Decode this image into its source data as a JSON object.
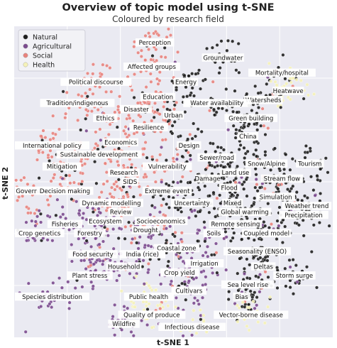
{
  "chart_data": {
    "type": "scatter",
    "title": "Overview of topic model using t-SNE",
    "subtitle": "Coloured by research field",
    "xlabel": "t-SNE 1",
    "ylabel": "t-SNE 2",
    "xlim": [
      0,
      100
    ],
    "ylim": [
      0,
      100
    ],
    "grid": true,
    "legend_position": "top-left",
    "series": [
      {
        "name": "Natural",
        "color": "#1e1e1e"
      },
      {
        "name": "Agricultural",
        "color": "#7b4a8e"
      },
      {
        "name": "Social",
        "color": "#e8837d"
      },
      {
        "name": "Health",
        "color": "#f5f2b8"
      }
    ],
    "annotations": [
      {
        "text": "Perception",
        "x": 44,
        "y": 96
      },
      {
        "text": "Groundwater",
        "x": 66,
        "y": 91
      },
      {
        "text": "Affected groups",
        "x": 43,
        "y": 88
      },
      {
        "text": "Mortality/hospital",
        "x": 85,
        "y": 86
      },
      {
        "text": "Political discourse",
        "x": 25,
        "y": 83
      },
      {
        "text": "Energy",
        "x": 54,
        "y": 83
      },
      {
        "text": "Heatwave",
        "x": 87,
        "y": 80
      },
      {
        "text": "Watersheds",
        "x": 79,
        "y": 77
      },
      {
        "text": "Education",
        "x": 45,
        "y": 78
      },
      {
        "text": "Water availability",
        "x": 64,
        "y": 76
      },
      {
        "text": "Tradition/indigenous",
        "x": 19,
        "y": 76
      },
      {
        "text": "Disaster",
        "x": 38,
        "y": 74
      },
      {
        "text": "Urban",
        "x": 50,
        "y": 72
      },
      {
        "text": "Ethics",
        "x": 28,
        "y": 71
      },
      {
        "text": "Green building",
        "x": 75,
        "y": 71
      },
      {
        "text": "Resilience",
        "x": 42,
        "y": 68
      },
      {
        "text": "China",
        "x": 74,
        "y": 65
      },
      {
        "text": "Economics",
        "x": 33,
        "y": 63
      },
      {
        "text": "International policy",
        "x": 9,
        "y": 62
      },
      {
        "text": "Design",
        "x": 55,
        "y": 62
      },
      {
        "text": "Sustainable development",
        "x": 26,
        "y": 59
      },
      {
        "text": "Sewer/road",
        "x": 64,
        "y": 58
      },
      {
        "text": "Snow/Alpine",
        "x": 80,
        "y": 56
      },
      {
        "text": "Tourism",
        "x": 94,
        "y": 56
      },
      {
        "text": "Mitigation",
        "x": 14,
        "y": 55
      },
      {
        "text": "Vulnerability",
        "x": 48,
        "y": 55
      },
      {
        "text": "Research",
        "x": 34,
        "y": 53
      },
      {
        "text": "Land use",
        "x": 70,
        "y": 53
      },
      {
        "text": "Damage",
        "x": 61,
        "y": 51
      },
      {
        "text": "Stream flow",
        "x": 85,
        "y": 51
      },
      {
        "text": "SIDS",
        "x": 36,
        "y": 50
      },
      {
        "text": "Flood",
        "x": 68,
        "y": 48
      },
      {
        "text": "Governance",
        "x": 3,
        "y": 47
      },
      {
        "text": "Decision making",
        "x": 15,
        "y": 47
      },
      {
        "text": "Extreme event",
        "x": 48,
        "y": 47
      },
      {
        "text": "Simulation",
        "x": 83,
        "y": 45
      },
      {
        "text": "Dynamic modelling",
        "x": 30,
        "y": 43
      },
      {
        "text": "Uncertainty",
        "x": 56,
        "y": 43
      },
      {
        "text": "Mixed",
        "x": 69,
        "y": 43
      },
      {
        "text": "Weather trend",
        "x": 93,
        "y": 42
      },
      {
        "text": "Review",
        "x": 33,
        "y": 40
      },
      {
        "text": "Global warming",
        "x": 73,
        "y": 40
      },
      {
        "text": "Precipitation",
        "x": 92,
        "y": 39
      },
      {
        "text": "Socioeconomics",
        "x": 46,
        "y": 37
      },
      {
        "text": "Ecosystem",
        "x": 28,
        "y": 37
      },
      {
        "text": "Drought",
        "x": 41,
        "y": 34
      },
      {
        "text": "Remote sensing",
        "x": 70,
        "y": 36
      },
      {
        "text": "Fisheries",
        "x": 15,
        "y": 36
      },
      {
        "text": "Coupled model",
        "x": 80,
        "y": 33
      },
      {
        "text": "Crop genetics",
        "x": 5,
        "y": 33
      },
      {
        "text": "Forestry",
        "x": 23,
        "y": 33
      },
      {
        "text": "Soils",
        "x": 63,
        "y": 33
      },
      {
        "text": "Coastal zone",
        "x": 51,
        "y": 28
      },
      {
        "text": "Seasonality (ENSO)",
        "x": 77,
        "y": 27
      },
      {
        "text": "Food security",
        "x": 24,
        "y": 26
      },
      {
        "text": "India (rice)",
        "x": 40,
        "y": 26
      },
      {
        "text": "Irrigation",
        "x": 60,
        "y": 23
      },
      {
        "text": "Household",
        "x": 34,
        "y": 22
      },
      {
        "text": "Deltas",
        "x": 79,
        "y": 22
      },
      {
        "text": "Crop yield",
        "x": 52,
        "y": 20
      },
      {
        "text": "Plant stress",
        "x": 23,
        "y": 19
      },
      {
        "text": "Storm surge",
        "x": 89,
        "y": 19
      },
      {
        "text": "Sea level rise",
        "x": 74,
        "y": 16
      },
      {
        "text": "Cultivars",
        "x": 55,
        "y": 14
      },
      {
        "text": "Public health",
        "x": 42,
        "y": 12
      },
      {
        "text": "Species distribution",
        "x": 10,
        "y": 12
      },
      {
        "text": "Bias",
        "x": 72,
        "y": 12
      },
      {
        "text": "Quality of produce",
        "x": 43,
        "y": 6
      },
      {
        "text": "Vector-borne disease",
        "x": 75,
        "y": 6
      },
      {
        "text": "Wildfire",
        "x": 34,
        "y": 3
      },
      {
        "text": "Infectious disease",
        "x": 56,
        "y": 2
      }
    ]
  }
}
